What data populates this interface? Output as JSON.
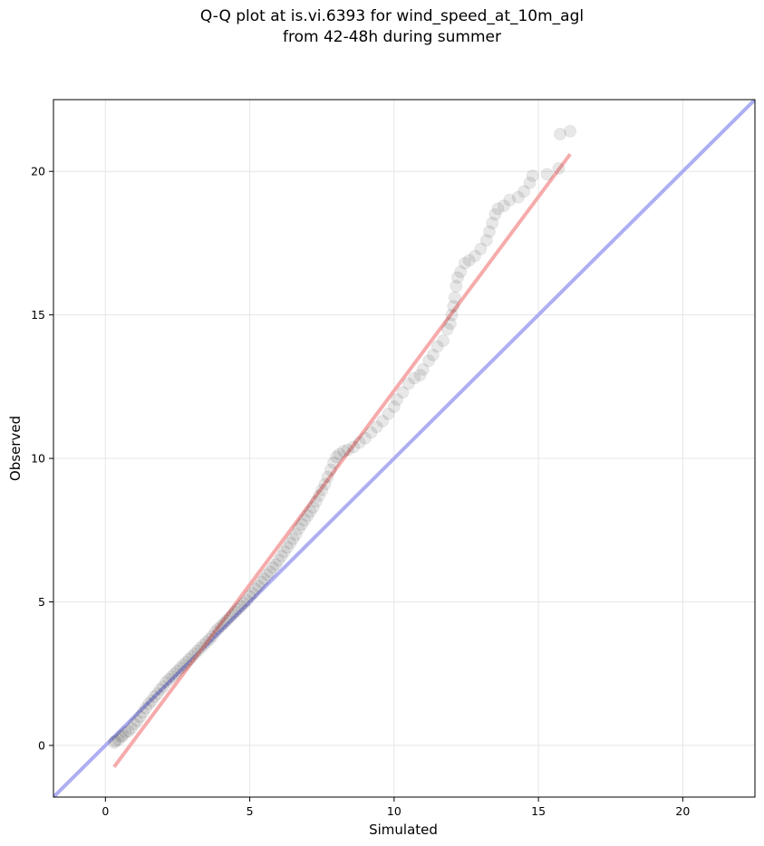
{
  "chart_data": {
    "type": "scatter",
    "title_line1": "Q-Q plot at is.vi.6393 for wind_speed_at_10m_agl",
    "title_line2": "from 42-48h during summer",
    "xlabel": "Simulated",
    "ylabel": "Observed",
    "xlim": [
      -1.8,
      22.5
    ],
    "ylim": [
      -1.8,
      22.5
    ],
    "xticks": [
      0,
      5,
      10,
      15,
      20
    ],
    "yticks": [
      0,
      5,
      10,
      15,
      20
    ],
    "grid": true,
    "reference_line": {
      "name": "1:1 line",
      "from": [
        -1.8,
        -1.8
      ],
      "to": [
        22.5,
        22.5
      ],
      "color": "#a9aaf2"
    },
    "fit_line": {
      "name": "linear fit",
      "from": [
        0.3,
        -0.75
      ],
      "to": [
        16.1,
        20.6
      ],
      "color": "#f5a7a7"
    },
    "points": [
      [
        0.3,
        0.1
      ],
      [
        0.35,
        0.15
      ],
      [
        0.45,
        0.2
      ],
      [
        0.55,
        0.3
      ],
      [
        0.6,
        0.35
      ],
      [
        0.7,
        0.45
      ],
      [
        0.8,
        0.5
      ],
      [
        0.9,
        0.6
      ],
      [
        1.0,
        0.75
      ],
      [
        1.1,
        0.85
      ],
      [
        1.2,
        1.0
      ],
      [
        1.3,
        1.15
      ],
      [
        1.4,
        1.3
      ],
      [
        1.5,
        1.45
      ],
      [
        1.6,
        1.55
      ],
      [
        1.7,
        1.7
      ],
      [
        1.8,
        1.8
      ],
      [
        1.9,
        1.95
      ],
      [
        2.0,
        2.05
      ],
      [
        2.1,
        2.2
      ],
      [
        2.2,
        2.3
      ],
      [
        2.3,
        2.4
      ],
      [
        2.4,
        2.5
      ],
      [
        2.5,
        2.6
      ],
      [
        2.6,
        2.7
      ],
      [
        2.7,
        2.8
      ],
      [
        2.8,
        2.9
      ],
      [
        2.9,
        3.0
      ],
      [
        3.0,
        3.1
      ],
      [
        3.1,
        3.2
      ],
      [
        3.2,
        3.3
      ],
      [
        3.3,
        3.4
      ],
      [
        3.4,
        3.5
      ],
      [
        3.5,
        3.6
      ],
      [
        3.6,
        3.7
      ],
      [
        3.7,
        3.8
      ],
      [
        3.8,
        3.95
      ],
      [
        3.9,
        4.05
      ],
      [
        4.0,
        4.15
      ],
      [
        4.1,
        4.25
      ],
      [
        4.2,
        4.35
      ],
      [
        4.3,
        4.45
      ],
      [
        4.4,
        4.55
      ],
      [
        4.5,
        4.65
      ],
      [
        4.6,
        4.75
      ],
      [
        4.7,
        4.85
      ],
      [
        4.8,
        4.95
      ],
      [
        4.9,
        5.05
      ],
      [
        5.0,
        5.2
      ],
      [
        5.1,
        5.3
      ],
      [
        5.2,
        5.45
      ],
      [
        5.3,
        5.55
      ],
      [
        5.4,
        5.7
      ],
      [
        5.5,
        5.8
      ],
      [
        5.6,
        5.95
      ],
      [
        5.7,
        6.05
      ],
      [
        5.8,
        6.2
      ],
      [
        5.9,
        6.3
      ],
      [
        6.0,
        6.45
      ],
      [
        6.1,
        6.6
      ],
      [
        6.2,
        6.75
      ],
      [
        6.3,
        6.9
      ],
      [
        6.4,
        7.05
      ],
      [
        6.5,
        7.2
      ],
      [
        6.6,
        7.35
      ],
      [
        6.7,
        7.55
      ],
      [
        6.8,
        7.7
      ],
      [
        6.9,
        7.85
      ],
      [
        7.0,
        8.0
      ],
      [
        7.1,
        8.15
      ],
      [
        7.2,
        8.3
      ],
      [
        7.3,
        8.5
      ],
      [
        7.4,
        8.7
      ],
      [
        7.5,
        8.9
      ],
      [
        7.6,
        9.1
      ],
      [
        7.7,
        9.35
      ],
      [
        7.8,
        9.6
      ],
      [
        7.9,
        9.85
      ],
      [
        8.0,
        10.05
      ],
      [
        8.1,
        10.15
      ],
      [
        8.25,
        10.25
      ],
      [
        8.4,
        10.3
      ],
      [
        8.6,
        10.4
      ],
      [
        8.8,
        10.55
      ],
      [
        9.0,
        10.7
      ],
      [
        9.2,
        10.9
      ],
      [
        9.4,
        11.1
      ],
      [
        9.6,
        11.3
      ],
      [
        9.8,
        11.55
      ],
      [
        10.0,
        11.8
      ],
      [
        10.1,
        12.05
      ],
      [
        10.3,
        12.3
      ],
      [
        10.5,
        12.6
      ],
      [
        10.7,
        12.8
      ],
      [
        10.9,
        12.9
      ],
      [
        11.0,
        13.1
      ],
      [
        11.2,
        13.4
      ],
      [
        11.35,
        13.6
      ],
      [
        11.5,
        13.9
      ],
      [
        11.7,
        14.1
      ],
      [
        11.85,
        14.5
      ],
      [
        11.95,
        14.7
      ],
      [
        12.0,
        15.0
      ],
      [
        12.05,
        15.3
      ],
      [
        12.1,
        15.6
      ],
      [
        12.15,
        16.0
      ],
      [
        12.2,
        16.3
      ],
      [
        12.3,
        16.5
      ],
      [
        12.45,
        16.8
      ],
      [
        12.6,
        16.9
      ],
      [
        12.8,
        17.05
      ],
      [
        13.0,
        17.3
      ],
      [
        13.2,
        17.6
      ],
      [
        13.3,
        17.9
      ],
      [
        13.4,
        18.2
      ],
      [
        13.5,
        18.5
      ],
      [
        13.6,
        18.7
      ],
      [
        13.8,
        18.8
      ],
      [
        14.0,
        19.0
      ],
      [
        14.3,
        19.1
      ],
      [
        14.5,
        19.3
      ],
      [
        14.7,
        19.6
      ],
      [
        14.8,
        19.85
      ],
      [
        15.3,
        19.9
      ],
      [
        15.7,
        20.1
      ],
      [
        15.75,
        21.3
      ],
      [
        16.1,
        21.4
      ]
    ]
  }
}
